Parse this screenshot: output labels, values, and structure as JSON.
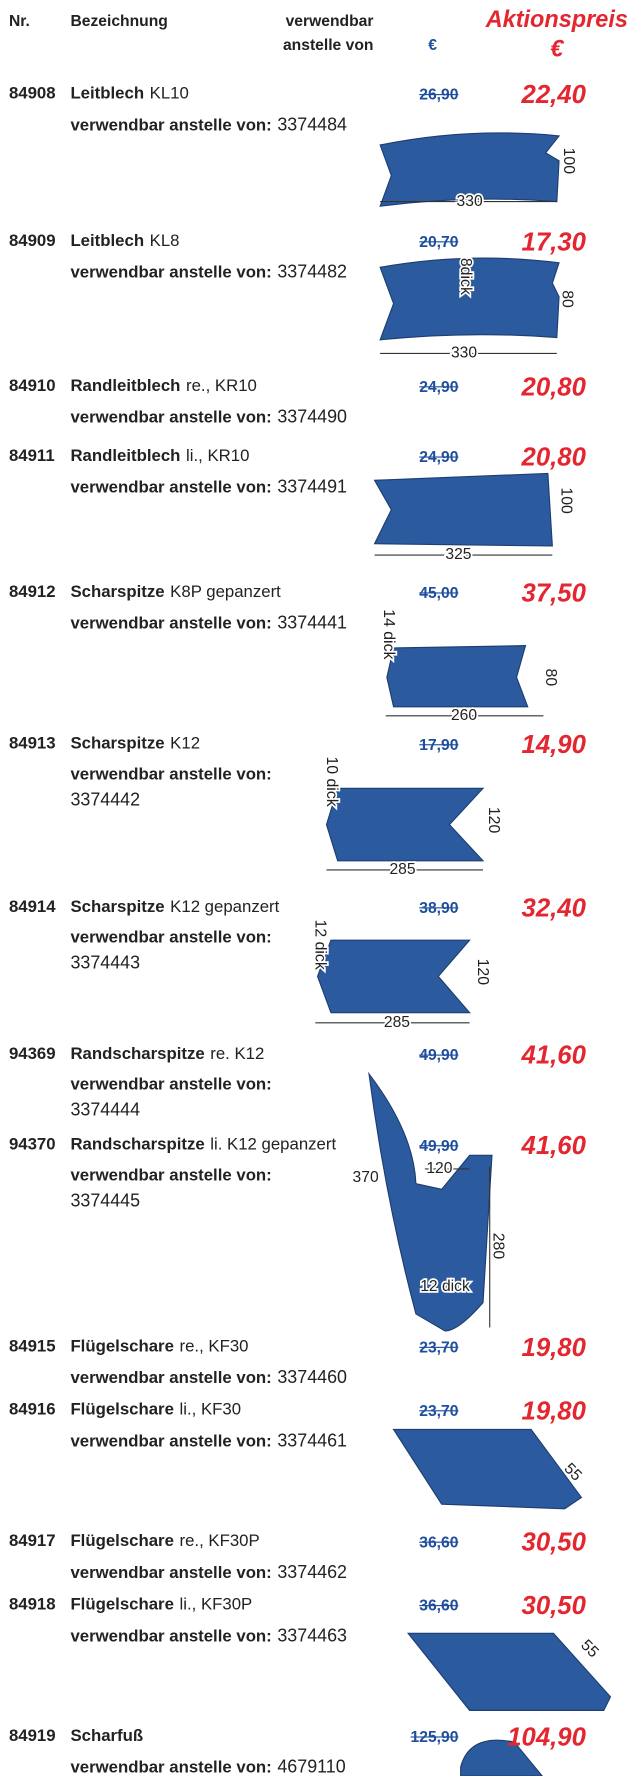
{
  "header": {
    "nr": "Nr.",
    "bezeichnung": "Bezeichnung",
    "verwendbar": [
      "verwendbar",
      "anstelle von"
    ],
    "euro": "€",
    "aktionspreis": [
      "Aktionspreis",
      "€"
    ]
  },
  "items": [
    {
      "nr": "84908",
      "name": "Leitblech",
      "suffix": "KL10",
      "label": "verwendbar anstelle von:",
      "ref": "3374484",
      "old": "26,90",
      "new": "22,40",
      "dims": [
        "100",
        "330"
      ]
    },
    {
      "nr": "84909",
      "name": "Leitblech",
      "suffix": "KL8",
      "label": "verwendbar anstelle von:",
      "ref": "3374482",
      "old": "20,70",
      "new": "17,30",
      "dims": [
        "8dick",
        "80",
        "330"
      ]
    },
    {
      "nr": "84910",
      "name": "Randleitblech",
      "suffix": "re., KR10",
      "label": "verwendbar anstelle von:",
      "ref": "3374490",
      "old": "24,90",
      "new": "20,80",
      "dims": []
    },
    {
      "nr": "84911",
      "name": "Randleitblech",
      "suffix": "li., KR10",
      "label": "verwendbar anstelle von:",
      "ref": "3374491",
      "old": "24,90",
      "new": "20,80",
      "dims": [
        "100",
        "325"
      ]
    },
    {
      "nr": "84912",
      "name": "Scharspitze",
      "suffix": "K8P gepanzert",
      "label": "verwendbar anstelle von:",
      "ref": "3374441",
      "old": "45,00",
      "new": "37,50",
      "dims": [
        "14 dick",
        "80",
        "260"
      ]
    },
    {
      "nr": "84913",
      "name": "Scharspitze",
      "suffix": "K12",
      "label": "verwendbar anstelle von:",
      "ref": "3374442",
      "old": "17,90",
      "new": "14,90",
      "dims": [
        "10 dick",
        "120",
        "285"
      ]
    },
    {
      "nr": "84914",
      "name": "Scharspitze",
      "suffix": "K12 gepanzert",
      "label": "verwendbar anstelle von:",
      "ref": "3374443",
      "old": "38,90",
      "new": "32,40",
      "dims": [
        "12 dick",
        "120",
        "285"
      ]
    },
    {
      "nr": "94369",
      "name": "Randscharspitze",
      "suffix": "re. K12",
      "label": "verwendbar anstelle von:",
      "ref": "3374444",
      "old": "49,90",
      "new": "41,60",
      "dims": []
    },
    {
      "nr": "94370",
      "name": "Randscharspitze",
      "suffix": "li. K12 gepanzert",
      "label": "verwendbar anstelle von:",
      "ref": "3374445",
      "old": "49,90",
      "new": "41,60",
      "dims": [
        "370",
        "120",
        "280",
        "12 dick"
      ]
    },
    {
      "nr": "84915",
      "name": "Flügelschare",
      "suffix": "re., KF30",
      "label": "verwendbar anstelle von:",
      "ref": "3374460",
      "old": "23,70",
      "new": "19,80",
      "dims": []
    },
    {
      "nr": "84916",
      "name": "Flügelschare",
      "suffix": "li., KF30",
      "label": "verwendbar anstelle von:",
      "ref": "3374461",
      "old": "23,70",
      "new": "19,80",
      "dims": [
        "55"
      ]
    },
    {
      "nr": "84917",
      "name": "Flügelschare",
      "suffix": "re., KF30P",
      "label": "verwendbar anstelle von:",
      "ref": "3374462",
      "old": "36,60",
      "new": "30,50",
      "dims": []
    },
    {
      "nr": "84918",
      "name": "Flügelschare",
      "suffix": "li., KF30P",
      "label": "verwendbar anstelle von:",
      "ref": "3374463",
      "old": "36,60",
      "new": "30,50",
      "dims": [
        "55"
      ]
    },
    {
      "nr": "84919",
      "name": "Scharfuß",
      "suffix": "",
      "label": "verwendbar anstelle von:",
      "ref": "4679110",
      "old": "125,90",
      "new": "104,90",
      "dims": []
    }
  ]
}
